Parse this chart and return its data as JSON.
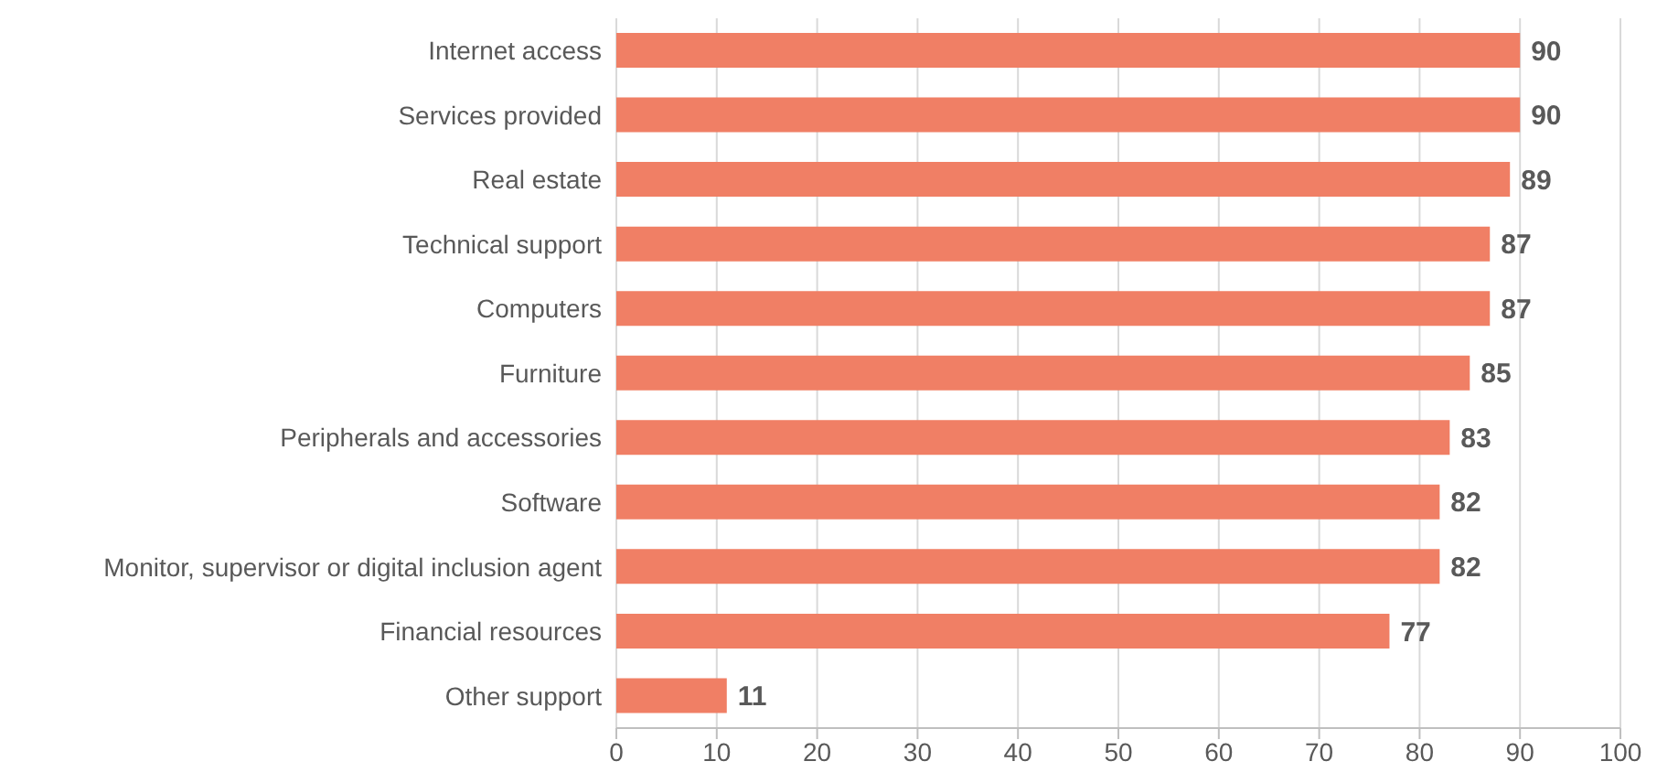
{
  "chart_data": {
    "type": "bar",
    "orientation": "horizontal",
    "categories": [
      "Internet access",
      "Services provided",
      "Real estate",
      "Technical support",
      "Computers",
      "Furniture",
      "Peripherals and accessories",
      "Software",
      "Monitor, supervisor or digital inclusion agent",
      "Financial resources",
      "Other support"
    ],
    "values": [
      90,
      90,
      89,
      87,
      87,
      85,
      83,
      82,
      82,
      77,
      11
    ],
    "color": "#f07f65",
    "xlim": [
      0,
      100
    ],
    "xticks": [
      0,
      10,
      20,
      30,
      40,
      50,
      60,
      70,
      80,
      90,
      100
    ],
    "grid": "x",
    "data_labels": true,
    "legend": false
  }
}
